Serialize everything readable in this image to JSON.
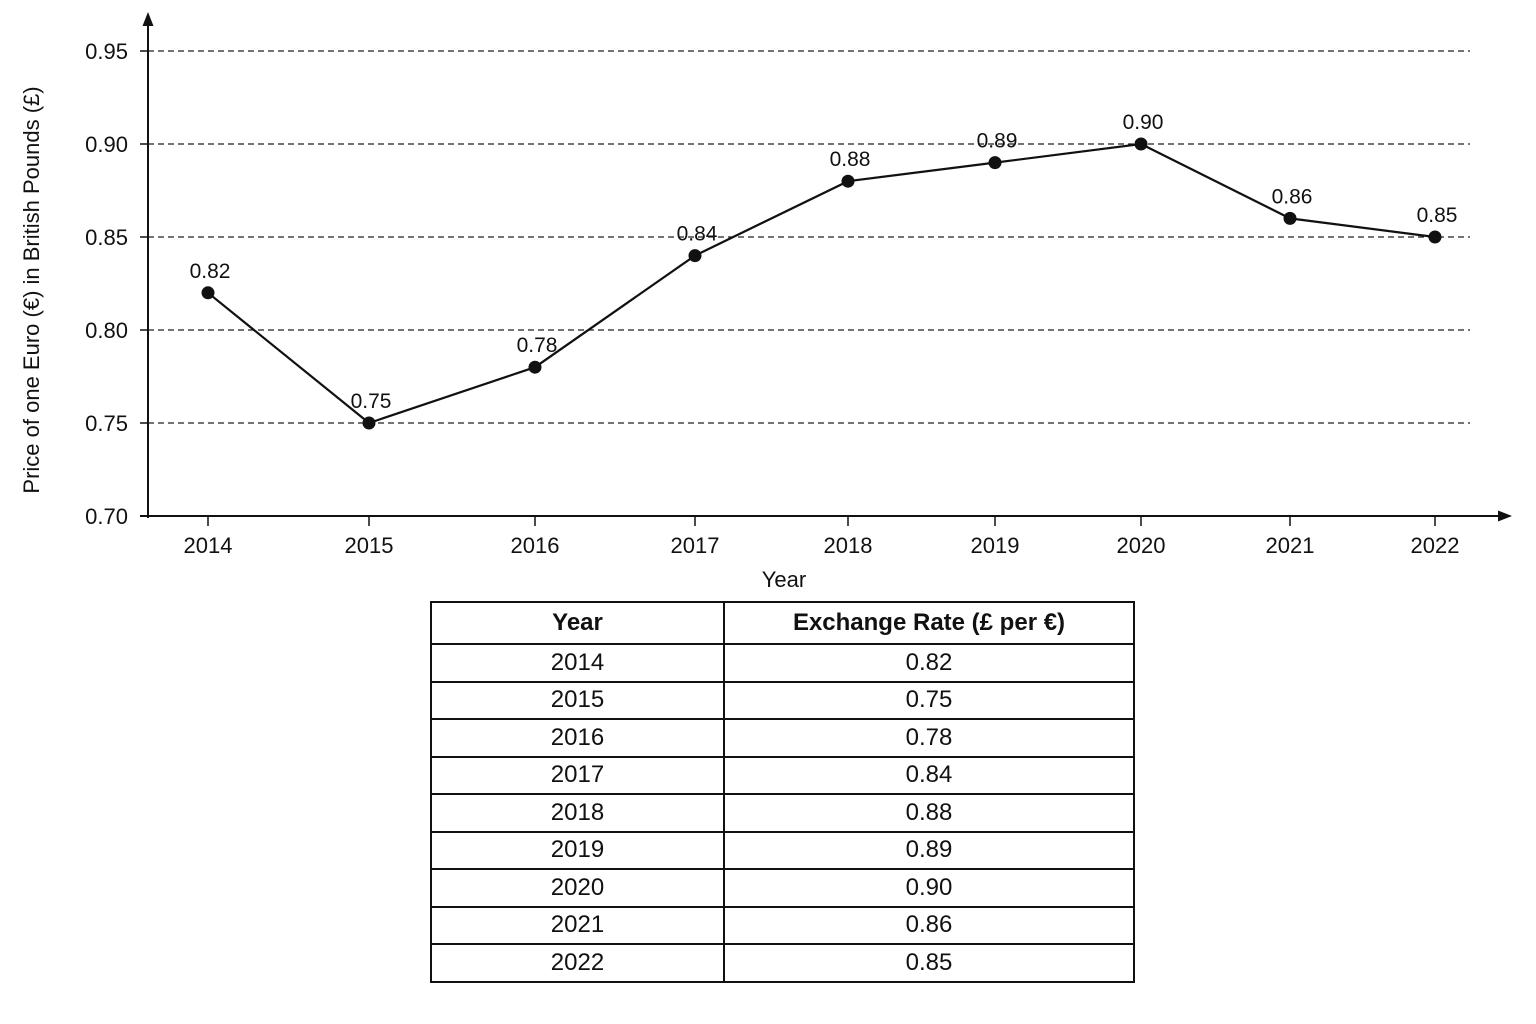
{
  "chart_data": {
    "type": "line",
    "title": "",
    "xlabel": "Year",
    "ylabel": "Price of one Euro (€) in British Pounds (£)",
    "categories": [
      "2014",
      "2015",
      "2016",
      "2017",
      "2018",
      "2019",
      "2020",
      "2021",
      "2022"
    ],
    "series": [
      {
        "values": [
          0.82,
          0.75,
          0.78,
          0.84,
          0.88,
          0.89,
          0.9,
          0.86,
          0.85
        ],
        "labels": [
          "0.82",
          "0.75",
          "0.78",
          "0.84",
          "0.88",
          "0.89",
          "0.90",
          "0.86",
          "0.85"
        ]
      }
    ],
    "ylim": [
      0.7,
      0.95
    ],
    "yticks": [
      "0.70",
      "0.75",
      "0.80",
      "0.85",
      "0.90",
      "0.95"
    ],
    "grid": "horizontal dashed",
    "legend": "none",
    "line_color": "#111111"
  },
  "table": {
    "headers": [
      "Year",
      "Exchange Rate (£ per €)"
    ],
    "rows": [
      [
        "2014",
        "0.82"
      ],
      [
        "2015",
        "0.75"
      ],
      [
        "2016",
        "0.78"
      ],
      [
        "2017",
        "0.84"
      ],
      [
        "2018",
        "0.88"
      ],
      [
        "2019",
        "0.89"
      ],
      [
        "2020",
        "0.90"
      ],
      [
        "2021",
        "0.86"
      ],
      [
        "2022",
        "0.85"
      ]
    ]
  }
}
